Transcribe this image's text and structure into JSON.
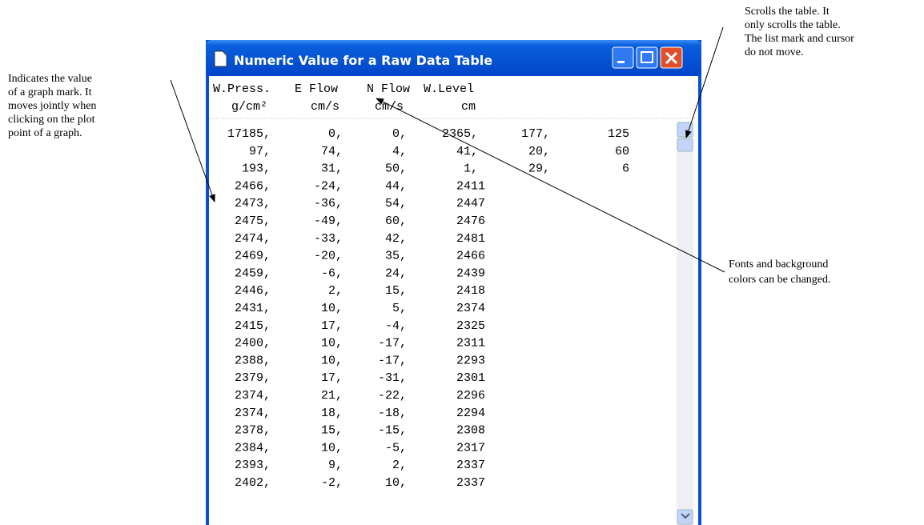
{
  "window": {
    "title": "Numeric Value for a Raw Data Table"
  },
  "header": {
    "names": [
      "W.Press.",
      "E Flow",
      "N Flow",
      "W.Level"
    ],
    "units": [
      "g/cm²",
      "cm/s",
      "cm/s",
      "cm"
    ]
  },
  "table": {
    "rows": [
      [
        "17185,",
        "0,",
        "0,",
        "2365,",
        "177,",
        "125"
      ],
      [
        "97,",
        "74,",
        "4,",
        "41,",
        "20,",
        "60"
      ],
      [
        "193,",
        "31,",
        "50,",
        "1,",
        "29,",
        "6"
      ],
      [
        "2466,",
        "-24,",
        "44,",
        "2411"
      ],
      [
        "2473,",
        "-36,",
        "54,",
        "2447"
      ],
      [
        "2475,",
        "-49,",
        "60,",
        "2476"
      ],
      [
        "2474,",
        "-33,",
        "42,",
        "2481"
      ],
      [
        "2469,",
        "-20,",
        "35,",
        "2466"
      ],
      [
        "2459,",
        "-6,",
        "24,",
        "2439"
      ],
      [
        "2446,",
        "2,",
        "15,",
        "2418"
      ],
      [
        "2431,",
        "10,",
        "5,",
        "2374"
      ],
      [
        "2415,",
        "17,",
        "-4,",
        "2325"
      ],
      [
        "2400,",
        "10,",
        "-17,",
        "2311"
      ],
      [
        "2388,",
        "10,",
        "-17,",
        "2293"
      ],
      [
        "2379,",
        "17,",
        "-31,",
        "2301"
      ],
      [
        "2374,",
        "21,",
        "-22,",
        "2296"
      ],
      [
        "2374,",
        "18,",
        "-18,",
        "2294"
      ],
      [
        "2378,",
        "15,",
        "-15,",
        "2308"
      ],
      [
        "2384,",
        "10,",
        "-5,",
        "2317"
      ],
      [
        "2393,",
        "9,",
        "2,",
        "2337"
      ],
      [
        "2402,",
        "-2,",
        "10,",
        "2337"
      ]
    ]
  },
  "annotations": {
    "graph_mark": [
      "Indicates the value",
      "of a graph mark.   It",
      "moves jointly when",
      "clicking on the plot",
      "point of a graph."
    ],
    "scroll": [
      "Scrolls  the  table.    It",
      "only  scrolls  the  table.",
      "The list mark and cursor",
      "do not move."
    ],
    "fonts": [
      "Fonts and background",
      "colors can be changed."
    ]
  }
}
